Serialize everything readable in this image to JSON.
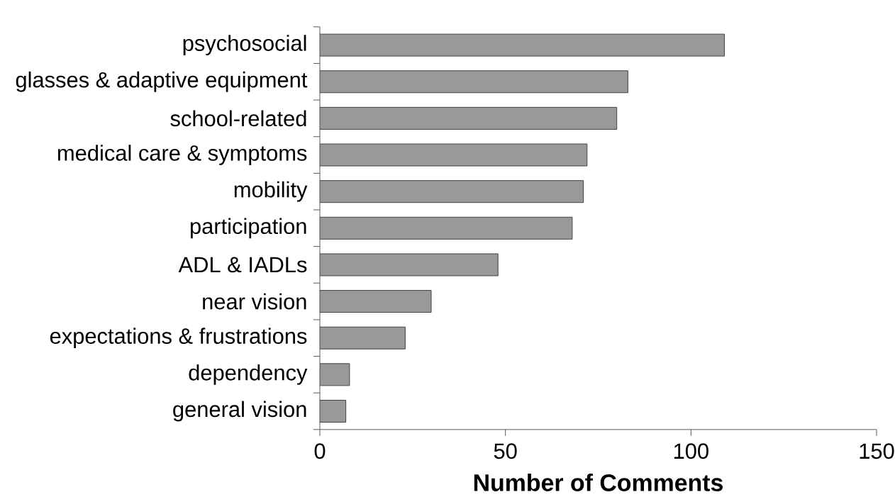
{
  "chart_data": {
    "type": "bar",
    "orientation": "horizontal",
    "categories": [
      "psychosocial",
      "glasses & adaptive equipment",
      "school-related",
      "medical care & symptoms",
      "mobility",
      "participation",
      "ADL & IADLs",
      "near vision",
      "expectations & frustrations",
      "dependency",
      "general vision"
    ],
    "values": [
      109,
      83,
      80,
      72,
      71,
      68,
      48,
      30,
      23,
      8,
      7
    ],
    "color": "#999999",
    "xlabel": "Number of Comments",
    "xlim": [
      0,
      150
    ],
    "xticks": [
      0,
      50,
      100,
      150
    ],
    "grid": false
  }
}
